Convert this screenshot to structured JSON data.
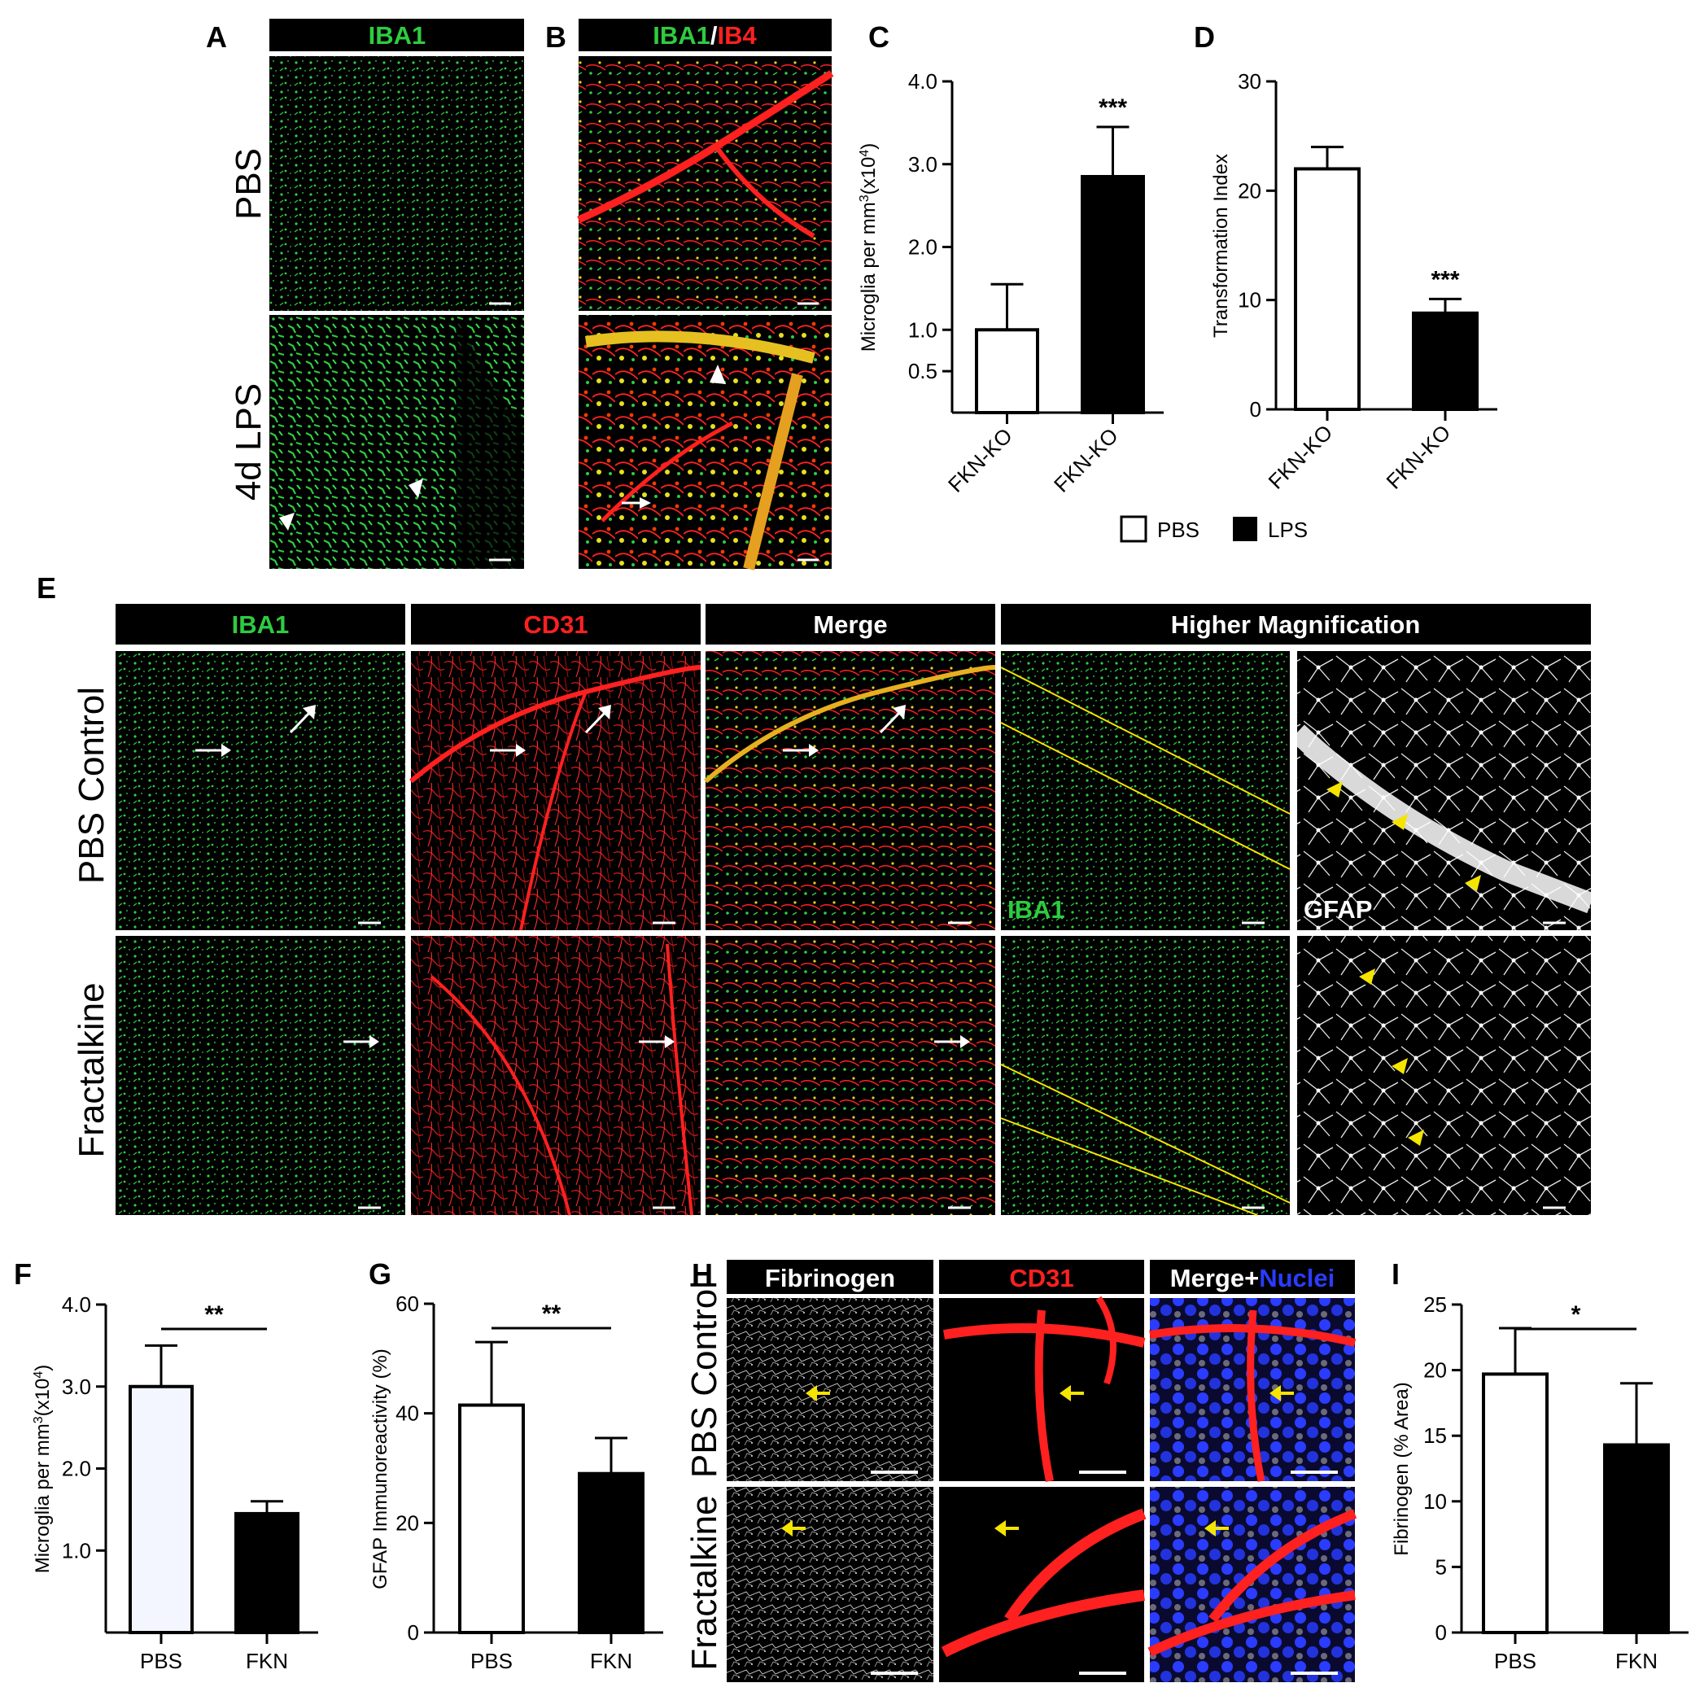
{
  "panels": {
    "A": {
      "label": "A",
      "header": "IBA1",
      "rows": [
        "PBS",
        "4d LPS"
      ]
    },
    "B": {
      "label": "B",
      "header_a": "IBA1",
      "header_sep": "/",
      "header_b": "IB4"
    },
    "C": {
      "label": "C"
    },
    "D": {
      "label": "D"
    },
    "E": {
      "label": "E",
      "headers": [
        "IBA1",
        "CD31",
        "Merge",
        "Higher Magnification"
      ],
      "rows": [
        "PBS Control",
        "Fractalkine"
      ],
      "inset_iba1": "IBA1",
      "inset_gfap": "GFAP"
    },
    "F": {
      "label": "F"
    },
    "G": {
      "label": "G"
    },
    "H": {
      "label": "H",
      "headers": [
        "Fibrinogen",
        "CD31"
      ],
      "merge_a": "Merge+",
      "merge_b": "Nuclei",
      "rows": [
        "PBS Control",
        "Fractalkine"
      ]
    },
    "I": {
      "label": "I"
    }
  },
  "legend_cd": {
    "pbs": "PBS",
    "lps": "LPS"
  },
  "colors": {
    "green": "#2ecc40",
    "red": "#ff2020",
    "blue": "#2a3cff",
    "yellow": "#f5e400",
    "grey_bar": "#f4f6ff",
    "black_bar": "#000000"
  },
  "chart_data": [
    {
      "id": "C",
      "type": "bar",
      "categories": [
        "FKN-KO",
        "FKN-KO"
      ],
      "values": [
        1.0,
        2.85
      ],
      "errors": [
        0.55,
        0.6
      ],
      "ylabel_a": "Microglia per mm",
      "ylabel_b": "3",
      "ylabel_c": "(x10",
      "ylabel_d": "4",
      "ylabel_e": ")",
      "yticks": [
        "0.5",
        "1.0",
        "2.0",
        "3.0",
        "4.0"
      ],
      "tick_values": [
        0.5,
        1.0,
        2.0,
        3.0,
        4.0
      ],
      "ylim": [
        0,
        4.0
      ],
      "significance": [
        "",
        "***"
      ],
      "fills": [
        "white",
        "black"
      ]
    },
    {
      "id": "D",
      "type": "bar",
      "categories": [
        "FKN-KO",
        "FKN-KO"
      ],
      "values": [
        22,
        8.8
      ],
      "errors": [
        2,
        1.3
      ],
      "ylabel": "Transformation Index",
      "yticks": [
        "0",
        "10",
        "20",
        "30"
      ],
      "tick_values": [
        0,
        10,
        20,
        30
      ],
      "ylim": [
        0,
        30
      ],
      "significance": [
        "",
        "***"
      ],
      "fills": [
        "white",
        "black"
      ]
    },
    {
      "id": "F",
      "type": "bar",
      "categories": [
        "PBS",
        "FKN"
      ],
      "values": [
        3.0,
        1.45
      ],
      "errors": [
        0.5,
        0.15
      ],
      "ylabel_a": "Microglia per mm",
      "ylabel_b": "3",
      "ylabel_c": "(x10",
      "ylabel_d": "4",
      "ylabel_e": ")",
      "yticks": [
        "1.0",
        "2.0",
        "3.0",
        "4.0"
      ],
      "tick_values": [
        1.0,
        2.0,
        3.0,
        4.0
      ],
      "ylim": [
        0,
        4.0
      ],
      "bracket": "**",
      "fills": [
        "grey",
        "black"
      ]
    },
    {
      "id": "G",
      "type": "bar",
      "categories": [
        "PBS",
        "FKN"
      ],
      "values": [
        41.5,
        29
      ],
      "errors": [
        11.5,
        6.5
      ],
      "ylabel": "GFAP Immunoreactivity (%)",
      "yticks": [
        "0",
        "20",
        "40",
        "60"
      ],
      "tick_values": [
        0,
        20,
        40,
        60
      ],
      "ylim": [
        0,
        60
      ],
      "bracket": "**",
      "fills": [
        "white",
        "black"
      ]
    },
    {
      "id": "I",
      "type": "bar",
      "categories": [
        "PBS",
        "FKN"
      ],
      "values": [
        19.7,
        14.3
      ],
      "errors": [
        3.5,
        4.7
      ],
      "ylabel": "Fibrinogen (% Area)",
      "yticks": [
        "0",
        "5",
        "10",
        "15",
        "20",
        "25"
      ],
      "tick_values": [
        0,
        5,
        10,
        15,
        20,
        25
      ],
      "ylim": [
        0,
        25
      ],
      "bracket": "*",
      "fills": [
        "white",
        "black"
      ]
    }
  ]
}
